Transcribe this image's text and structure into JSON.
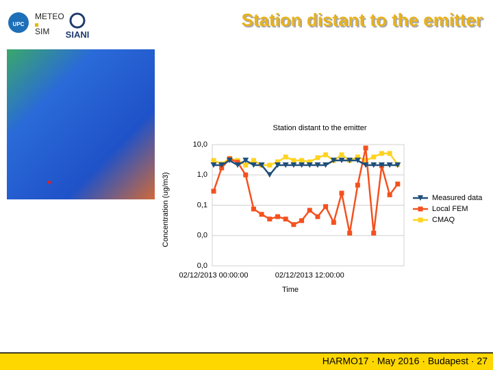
{
  "slide": {
    "title": "Station distant to the emitter",
    "footer": "HARMO17 · May 2016 · Budapest · 27",
    "logos": [
      "UPC",
      "METEO",
      "SIM",
      "SIANI"
    ]
  },
  "chart_data": {
    "type": "line",
    "title": "Station distant to the emitter",
    "x_label": "Time",
    "y_label": "Concentration (ug/m3)",
    "categories": [
      "02/12/2013 00:00:00",
      null,
      null,
      null,
      null,
      null,
      null,
      null,
      null,
      null,
      null,
      null,
      "02/12/2013 12:00:00",
      null,
      null,
      null,
      null,
      null,
      null,
      null,
      null,
      null,
      null,
      null
    ],
    "ylim": [
      0.001,
      10
    ],
    "log_scale": true,
    "yticks": [
      {
        "value": 10,
        "label": "10,0"
      },
      {
        "value": 1,
        "label": "1,0"
      },
      {
        "value": 0.1,
        "label": "0,1"
      },
      {
        "value": 0.01,
        "label": "0,0"
      },
      {
        "value": 0.001,
        "label": "0,0"
      }
    ],
    "grid": true,
    "legend": "right",
    "series": [
      {
        "name": "Measured data",
        "color": "#1f4e79",
        "marker": "triangle-down",
        "values": [
          2.1,
          2.1,
          3.0,
          2.1,
          3.0,
          2.1,
          2.1,
          1.0,
          2.1,
          2.1,
          2.1,
          2.1,
          2.1,
          2.1,
          2.1,
          3.0,
          3.0,
          3.0,
          3.0,
          2.1,
          2.1,
          2.1,
          2.1,
          2.1
        ]
      },
      {
        "name": "Local FEM",
        "color": "#f4511e",
        "marker": "square",
        "values": [
          0.29,
          1.7,
          3.4,
          2.6,
          1.0,
          0.075,
          0.05,
          0.035,
          0.042,
          0.035,
          0.023,
          0.031,
          0.068,
          0.042,
          0.09,
          0.027,
          0.25,
          0.012,
          0.46,
          7.7,
          0.012,
          2.0,
          0.22,
          0.5
        ]
      },
      {
        "name": "CMAQ",
        "color": "#ffd320",
        "marker": "square",
        "values": [
          3.0,
          2.3,
          3.5,
          3.0,
          2.1,
          3.0,
          2.1,
          2.1,
          2.7,
          3.9,
          3.0,
          3.0,
          2.7,
          3.7,
          4.6,
          3.0,
          4.6,
          3.0,
          3.9,
          3.0,
          3.9,
          5.1,
          5.1,
          2.2
        ]
      }
    ]
  }
}
